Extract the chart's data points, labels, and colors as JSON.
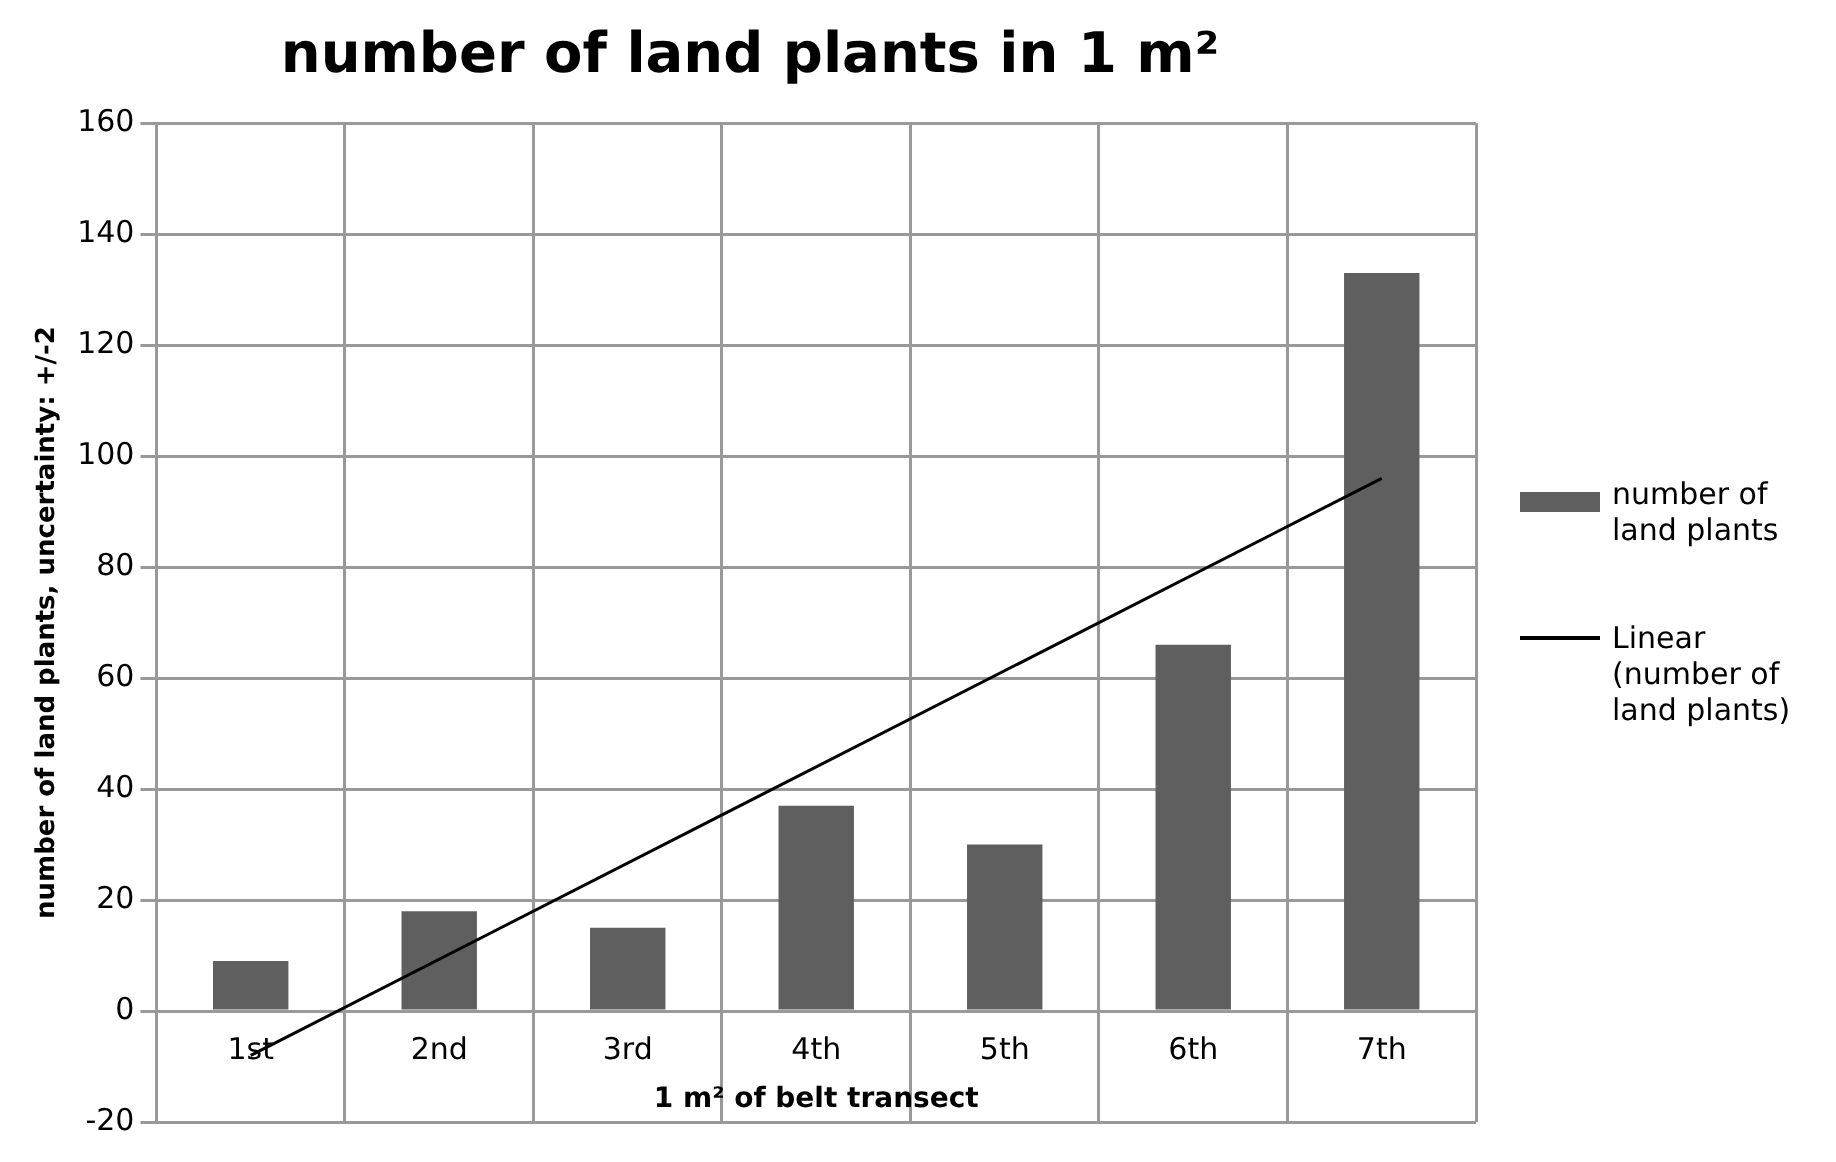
{
  "chart_data": {
    "type": "bar",
    "title": "number of land plants in 1 m²",
    "xlabel": "1 m² of belt transect",
    "ylabel": "number of land plants, uncertainty: +/-2",
    "categories": [
      "1st",
      "2nd",
      "3rd",
      "4th",
      "5th",
      "6th",
      "7th"
    ],
    "series": [
      {
        "name": "number of land plants",
        "color": "#5f5f5f",
        "values": [
          9,
          18,
          15,
          37,
          30,
          66,
          133
        ]
      },
      {
        "name": "Linear (number of land plants)",
        "type": "line",
        "color": "#000000",
        "x": [
          "1st",
          "7th"
        ],
        "values": [
          -8,
          96
        ]
      }
    ],
    "ylim": [
      -20,
      160
    ],
    "yticks": [
      -20,
      0,
      20,
      40,
      60,
      80,
      100,
      120,
      140,
      160
    ],
    "grid": true,
    "legend": "right"
  }
}
